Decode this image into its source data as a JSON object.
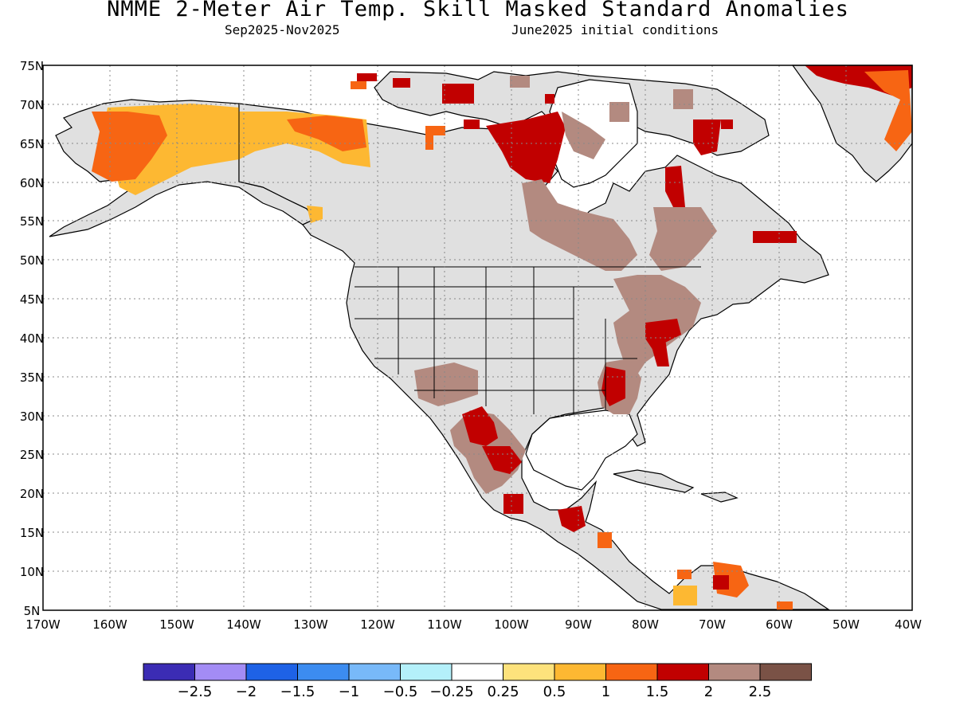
{
  "header": {
    "title": "NMME 2-Meter Air Temp. Skill Masked Standard Anomalies",
    "period": "Sep2025-Nov2025",
    "init": "June2025 initial conditions"
  },
  "map": {
    "lat_labels": [
      "75N",
      "70N",
      "65N",
      "60N",
      "55N",
      "50N",
      "45N",
      "40N",
      "35N",
      "30N",
      "25N",
      "20N",
      "15N",
      "10N",
      "5N"
    ],
    "lon_labels": [
      "170W",
      "160W",
      "150W",
      "140W",
      "130W",
      "120W",
      "110W",
      "100W",
      "90W",
      "80W",
      "70W",
      "60W",
      "50W",
      "40W"
    ],
    "masked_color": "#e0e0e0",
    "ocean_color": "#ffffff"
  },
  "colorbar": {
    "colors": [
      "#3b2cb4",
      "#a38cf5",
      "#1e62e6",
      "#3c8cf0",
      "#78b9f9",
      "#b4f0fa",
      "#ffffff",
      "#fde27c",
      "#fdb832",
      "#f76513",
      "#c10000",
      "#b38a80",
      "#7a5246"
    ],
    "labels": [
      "-2.5",
      "-2",
      "-1.5",
      "-1",
      "-0.5",
      "-0.25",
      "0.25",
      "0.5",
      "1",
      "1.5",
      "2",
      "2.5"
    ]
  }
}
